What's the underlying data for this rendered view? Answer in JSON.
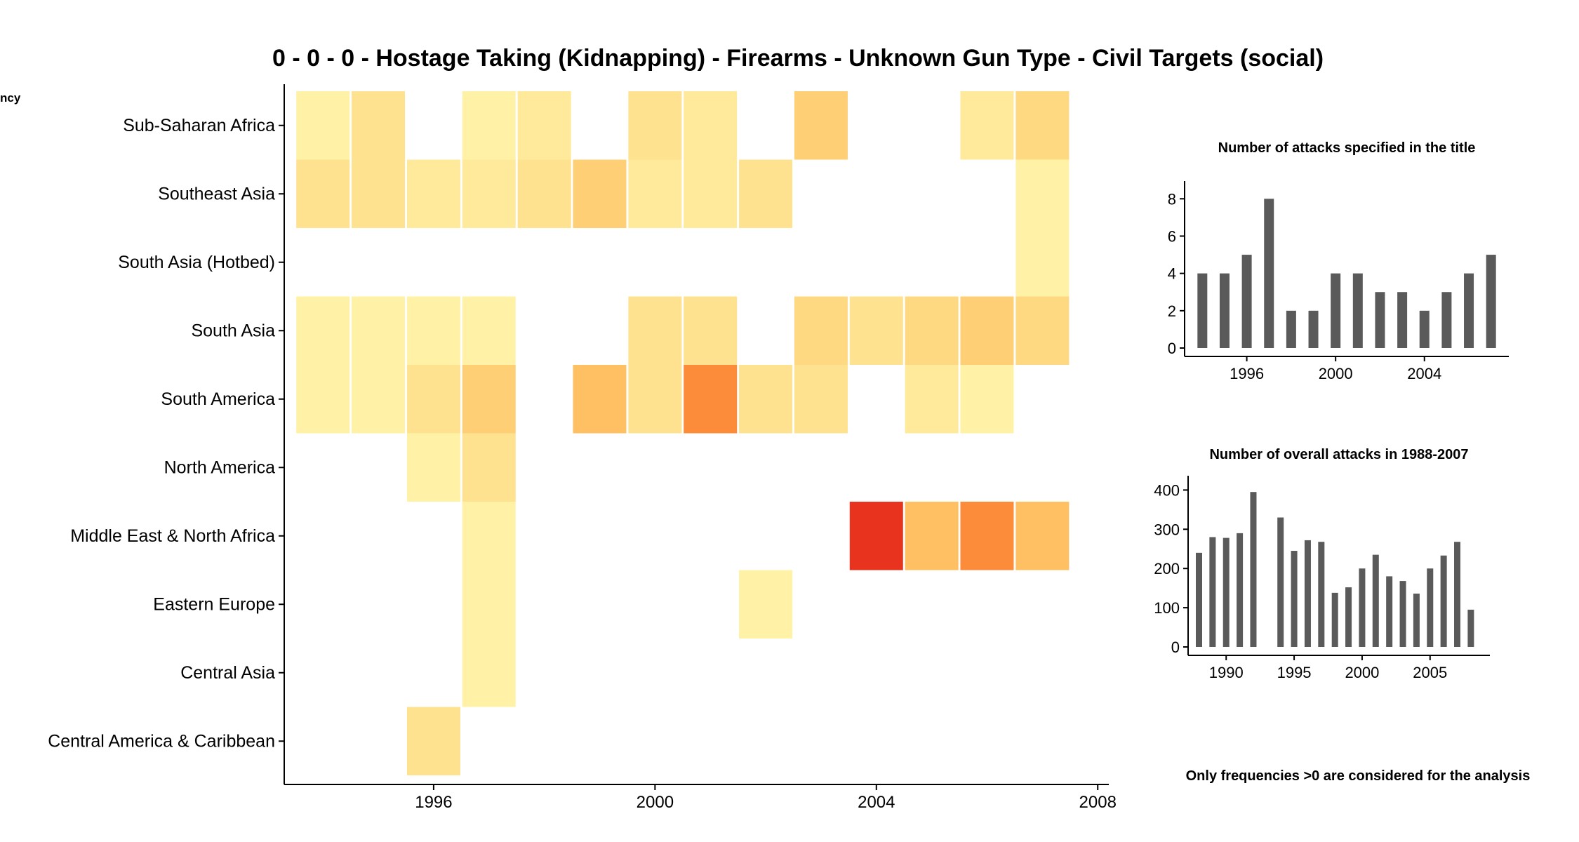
{
  "title": "0 - 0 - 0 - Hostage Taking (Kidnapping) - Firearms - Unknown Gun Type - Civil Targets (social)",
  "legend_label_fragment": "ncy",
  "footnote": "Only frequencies >0 are considered for the analysis",
  "colors": {
    "scale": [
      "#FFF1A6",
      "#FFE28F",
      "#FECF74",
      "#FDB050",
      "#FC8C3A",
      "#E8341F"
    ],
    "bar": "#5a5a5a"
  },
  "chart_data": [
    {
      "type": "heatmap",
      "title": "0 - 0 - 0 - Hostage Taking (Kidnapping) - Firearms - Unknown Gun Type - Civil Targets (social)",
      "x_tick_labels": [
        "1996",
        "2000",
        "2004",
        "2008"
      ],
      "x_ticks": [
        1996,
        2000,
        2004,
        2008
      ],
      "xlim": [
        1993.3,
        2008.2
      ],
      "rows": [
        "Sub-Saharan Africa",
        "Southeast Asia",
        "South Asia (Hotbed)",
        "South Asia",
        "South America",
        "North America",
        "Middle East & North Africa",
        "Eastern Europe",
        "Central Asia",
        "Central America & Caribbean"
      ],
      "cells": [
        {
          "row": "Sub-Saharan Africa",
          "year": 1994,
          "value": 1
        },
        {
          "row": "Sub-Saharan Africa",
          "year": 1995,
          "value": 2
        },
        {
          "row": "Sub-Saharan Africa",
          "year": 1997,
          "value": 1
        },
        {
          "row": "Sub-Saharan Africa",
          "year": 1998,
          "value": 1.5
        },
        {
          "row": "Sub-Saharan Africa",
          "year": 2000,
          "value": 2
        },
        {
          "row": "Sub-Saharan Africa",
          "year": 2001,
          "value": 1.5
        },
        {
          "row": "Sub-Saharan Africa",
          "year": 2003,
          "value": 3
        },
        {
          "row": "Sub-Saharan Africa",
          "year": 2006,
          "value": 1.5
        },
        {
          "row": "Sub-Saharan Africa",
          "year": 2007,
          "value": 2.5
        },
        {
          "row": "Southeast Asia",
          "year": 1994,
          "value": 2
        },
        {
          "row": "Southeast Asia",
          "year": 1995,
          "value": 2
        },
        {
          "row": "Southeast Asia",
          "year": 1996,
          "value": 1.5
        },
        {
          "row": "Southeast Asia",
          "year": 1997,
          "value": 1.5
        },
        {
          "row": "Southeast Asia",
          "year": 1998,
          "value": 2
        },
        {
          "row": "Southeast Asia",
          "year": 1999,
          "value": 3
        },
        {
          "row": "Southeast Asia",
          "year": 2000,
          "value": 1.5
        },
        {
          "row": "Southeast Asia",
          "year": 2001,
          "value": 1.5
        },
        {
          "row": "Southeast Asia",
          "year": 2002,
          "value": 2
        },
        {
          "row": "Southeast Asia",
          "year": 2007,
          "value": 1
        },
        {
          "row": "South Asia (Hotbed)",
          "year": 2007,
          "value": 1
        },
        {
          "row": "South Asia",
          "year": 1994,
          "value": 1
        },
        {
          "row": "South Asia",
          "year": 1995,
          "value": 1
        },
        {
          "row": "South Asia",
          "year": 1996,
          "value": 1
        },
        {
          "row": "South Asia",
          "year": 1997,
          "value": 1
        },
        {
          "row": "South Asia",
          "year": 2000,
          "value": 2
        },
        {
          "row": "South Asia",
          "year": 2001,
          "value": 2
        },
        {
          "row": "South Asia",
          "year": 2003,
          "value": 2.5
        },
        {
          "row": "South Asia",
          "year": 2004,
          "value": 2
        },
        {
          "row": "South Asia",
          "year": 2005,
          "value": 2.5
        },
        {
          "row": "South Asia",
          "year": 2006,
          "value": 3
        },
        {
          "row": "South Asia",
          "year": 2007,
          "value": 2.5
        },
        {
          "row": "South America",
          "year": 1994,
          "value": 1
        },
        {
          "row": "South America",
          "year": 1995,
          "value": 1
        },
        {
          "row": "South America",
          "year": 1996,
          "value": 2
        },
        {
          "row": "South America",
          "year": 1997,
          "value": 3
        },
        {
          "row": "South America",
          "year": 1999,
          "value": 3.5
        },
        {
          "row": "South America",
          "year": 2000,
          "value": 2
        },
        {
          "row": "South America",
          "year": 2001,
          "value": 5
        },
        {
          "row": "South America",
          "year": 2002,
          "value": 2
        },
        {
          "row": "South America",
          "year": 2003,
          "value": 2
        },
        {
          "row": "South America",
          "year": 2005,
          "value": 1.5
        },
        {
          "row": "South America",
          "year": 2006,
          "value": 1
        },
        {
          "row": "North America",
          "year": 1996,
          "value": 1
        },
        {
          "row": "North America",
          "year": 1997,
          "value": 2
        },
        {
          "row": "Middle East & North Africa",
          "year": 1997,
          "value": 1
        },
        {
          "row": "Middle East & North Africa",
          "year": 2004,
          "value": 8
        },
        {
          "row": "Middle East & North Africa",
          "year": 2005,
          "value": 3.5
        },
        {
          "row": "Middle East & North Africa",
          "year": 2006,
          "value": 5
        },
        {
          "row": "Middle East & North Africa",
          "year": 2007,
          "value": 3.5
        },
        {
          "row": "Eastern Europe",
          "year": 1997,
          "value": 1
        },
        {
          "row": "Eastern Europe",
          "year": 2002,
          "value": 1
        },
        {
          "row": "Central Asia",
          "year": 1997,
          "value": 1
        },
        {
          "row": "Central America & Caribbean",
          "year": 1996,
          "value": 2
        }
      ]
    },
    {
      "type": "bar",
      "title": "Number of attacks specified in the title",
      "x": [
        1994,
        1995,
        1996,
        1997,
        1998,
        1999,
        2000,
        2001,
        2002,
        2003,
        2004,
        2005,
        2006,
        2007
      ],
      "values": [
        4,
        4,
        5,
        8,
        2,
        2,
        4,
        4,
        3,
        3,
        2,
        3,
        4,
        5
      ],
      "x_tick_labels": [
        "1996",
        "2000",
        "2004"
      ],
      "x_ticks": [
        1996,
        2000,
        2004
      ],
      "y_tick_labels": [
        "0",
        "2",
        "4",
        "6",
        "8"
      ],
      "y_ticks": [
        0,
        2,
        4,
        6,
        8
      ],
      "xlim": [
        1993.2,
        2007.8
      ],
      "ylim": [
        0,
        8.5
      ]
    },
    {
      "type": "bar",
      "title": "Number of overall attacks in 1988-2007",
      "x": [
        1988,
        1989,
        1990,
        1991,
        1992,
        1994,
        1995,
        1996,
        1997,
        1998,
        1999,
        2000,
        2001,
        2002,
        2003,
        2004,
        2005,
        2006,
        2007,
        2008
      ],
      "values": [
        240,
        280,
        278,
        290,
        395,
        330,
        245,
        272,
        268,
        138,
        152,
        200,
        235,
        180,
        168,
        136,
        200,
        233,
        268,
        95
      ],
      "x_tick_labels": [
        "1990",
        "1995",
        "2000",
        "2005"
      ],
      "x_ticks": [
        1990,
        1995,
        2000,
        2005
      ],
      "y_tick_labels": [
        "0",
        "100",
        "200",
        "300",
        "400"
      ],
      "y_ticks": [
        0,
        100,
        200,
        300,
        400
      ],
      "xlim": [
        1987.2,
        2009.4
      ],
      "ylim": [
        0,
        415
      ]
    }
  ]
}
